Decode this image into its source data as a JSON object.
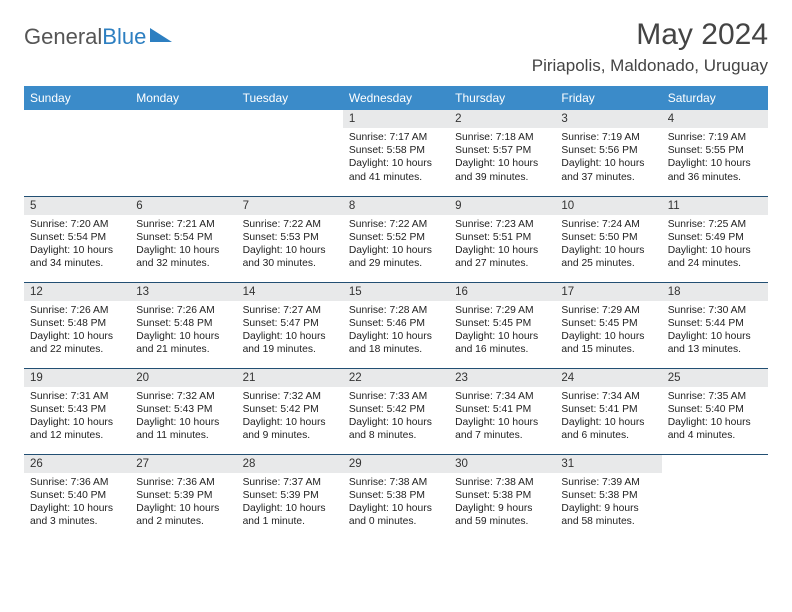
{
  "logo": {
    "text_gray": "General",
    "text_blue": "Blue"
  },
  "title": "May 2024",
  "location": "Piriapolis, Maldonado, Uruguay",
  "colors": {
    "header_bg": "#3b8bc9",
    "header_fg": "#ffffff",
    "daynum_bg": "#e8e9ea",
    "rule": "#224f73",
    "text": "#222222"
  },
  "weekdays": [
    "Sunday",
    "Monday",
    "Tuesday",
    "Wednesday",
    "Thursday",
    "Friday",
    "Saturday"
  ],
  "weeks": [
    [
      null,
      null,
      null,
      {
        "n": "1",
        "sr": "Sunrise: 7:17 AM",
        "ss": "Sunset: 5:58 PM",
        "dl": "Daylight: 10 hours and 41 minutes."
      },
      {
        "n": "2",
        "sr": "Sunrise: 7:18 AM",
        "ss": "Sunset: 5:57 PM",
        "dl": "Daylight: 10 hours and 39 minutes."
      },
      {
        "n": "3",
        "sr": "Sunrise: 7:19 AM",
        "ss": "Sunset: 5:56 PM",
        "dl": "Daylight: 10 hours and 37 minutes."
      },
      {
        "n": "4",
        "sr": "Sunrise: 7:19 AM",
        "ss": "Sunset: 5:55 PM",
        "dl": "Daylight: 10 hours and 36 minutes."
      }
    ],
    [
      {
        "n": "5",
        "sr": "Sunrise: 7:20 AM",
        "ss": "Sunset: 5:54 PM",
        "dl": "Daylight: 10 hours and 34 minutes."
      },
      {
        "n": "6",
        "sr": "Sunrise: 7:21 AM",
        "ss": "Sunset: 5:54 PM",
        "dl": "Daylight: 10 hours and 32 minutes."
      },
      {
        "n": "7",
        "sr": "Sunrise: 7:22 AM",
        "ss": "Sunset: 5:53 PM",
        "dl": "Daylight: 10 hours and 30 minutes."
      },
      {
        "n": "8",
        "sr": "Sunrise: 7:22 AM",
        "ss": "Sunset: 5:52 PM",
        "dl": "Daylight: 10 hours and 29 minutes."
      },
      {
        "n": "9",
        "sr": "Sunrise: 7:23 AM",
        "ss": "Sunset: 5:51 PM",
        "dl": "Daylight: 10 hours and 27 minutes."
      },
      {
        "n": "10",
        "sr": "Sunrise: 7:24 AM",
        "ss": "Sunset: 5:50 PM",
        "dl": "Daylight: 10 hours and 25 minutes."
      },
      {
        "n": "11",
        "sr": "Sunrise: 7:25 AM",
        "ss": "Sunset: 5:49 PM",
        "dl": "Daylight: 10 hours and 24 minutes."
      }
    ],
    [
      {
        "n": "12",
        "sr": "Sunrise: 7:26 AM",
        "ss": "Sunset: 5:48 PM",
        "dl": "Daylight: 10 hours and 22 minutes."
      },
      {
        "n": "13",
        "sr": "Sunrise: 7:26 AM",
        "ss": "Sunset: 5:48 PM",
        "dl": "Daylight: 10 hours and 21 minutes."
      },
      {
        "n": "14",
        "sr": "Sunrise: 7:27 AM",
        "ss": "Sunset: 5:47 PM",
        "dl": "Daylight: 10 hours and 19 minutes."
      },
      {
        "n": "15",
        "sr": "Sunrise: 7:28 AM",
        "ss": "Sunset: 5:46 PM",
        "dl": "Daylight: 10 hours and 18 minutes."
      },
      {
        "n": "16",
        "sr": "Sunrise: 7:29 AM",
        "ss": "Sunset: 5:45 PM",
        "dl": "Daylight: 10 hours and 16 minutes."
      },
      {
        "n": "17",
        "sr": "Sunrise: 7:29 AM",
        "ss": "Sunset: 5:45 PM",
        "dl": "Daylight: 10 hours and 15 minutes."
      },
      {
        "n": "18",
        "sr": "Sunrise: 7:30 AM",
        "ss": "Sunset: 5:44 PM",
        "dl": "Daylight: 10 hours and 13 minutes."
      }
    ],
    [
      {
        "n": "19",
        "sr": "Sunrise: 7:31 AM",
        "ss": "Sunset: 5:43 PM",
        "dl": "Daylight: 10 hours and 12 minutes."
      },
      {
        "n": "20",
        "sr": "Sunrise: 7:32 AM",
        "ss": "Sunset: 5:43 PM",
        "dl": "Daylight: 10 hours and 11 minutes."
      },
      {
        "n": "21",
        "sr": "Sunrise: 7:32 AM",
        "ss": "Sunset: 5:42 PM",
        "dl": "Daylight: 10 hours and 9 minutes."
      },
      {
        "n": "22",
        "sr": "Sunrise: 7:33 AM",
        "ss": "Sunset: 5:42 PM",
        "dl": "Daylight: 10 hours and 8 minutes."
      },
      {
        "n": "23",
        "sr": "Sunrise: 7:34 AM",
        "ss": "Sunset: 5:41 PM",
        "dl": "Daylight: 10 hours and 7 minutes."
      },
      {
        "n": "24",
        "sr": "Sunrise: 7:34 AM",
        "ss": "Sunset: 5:41 PM",
        "dl": "Daylight: 10 hours and 6 minutes."
      },
      {
        "n": "25",
        "sr": "Sunrise: 7:35 AM",
        "ss": "Sunset: 5:40 PM",
        "dl": "Daylight: 10 hours and 4 minutes."
      }
    ],
    [
      {
        "n": "26",
        "sr": "Sunrise: 7:36 AM",
        "ss": "Sunset: 5:40 PM",
        "dl": "Daylight: 10 hours and 3 minutes."
      },
      {
        "n": "27",
        "sr": "Sunrise: 7:36 AM",
        "ss": "Sunset: 5:39 PM",
        "dl": "Daylight: 10 hours and 2 minutes."
      },
      {
        "n": "28",
        "sr": "Sunrise: 7:37 AM",
        "ss": "Sunset: 5:39 PM",
        "dl": "Daylight: 10 hours and 1 minute."
      },
      {
        "n": "29",
        "sr": "Sunrise: 7:38 AM",
        "ss": "Sunset: 5:38 PM",
        "dl": "Daylight: 10 hours and 0 minutes."
      },
      {
        "n": "30",
        "sr": "Sunrise: 7:38 AM",
        "ss": "Sunset: 5:38 PM",
        "dl": "Daylight: 9 hours and 59 minutes."
      },
      {
        "n": "31",
        "sr": "Sunrise: 7:39 AM",
        "ss": "Sunset: 5:38 PM",
        "dl": "Daylight: 9 hours and 58 minutes."
      },
      null
    ]
  ]
}
